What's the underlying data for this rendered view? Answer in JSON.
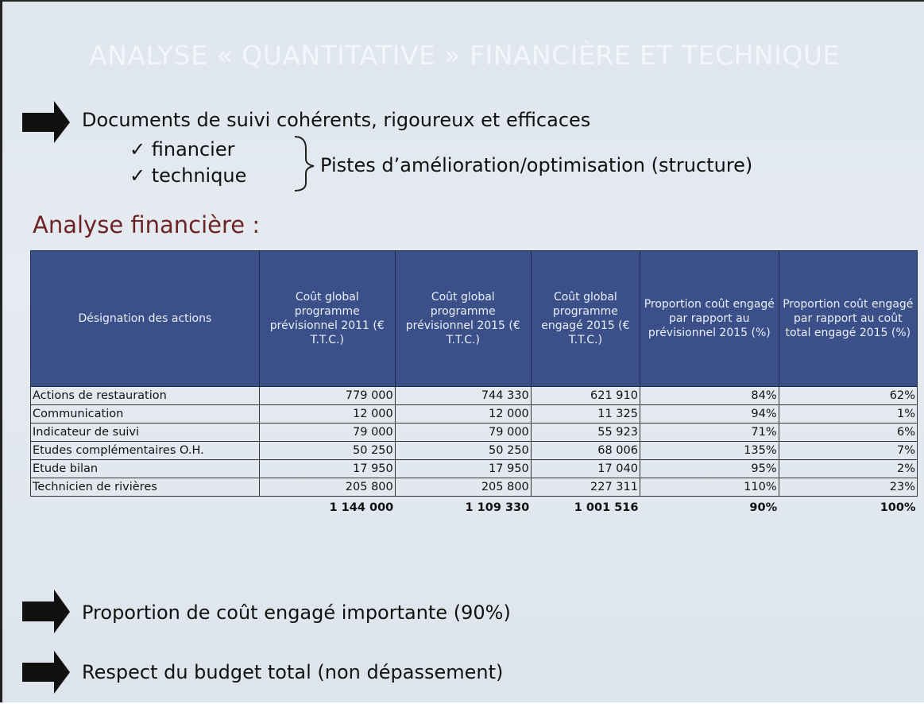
{
  "header": {
    "title": "ANALYSE « QUANTITATIVE » FINANCIÈRE ET TECHNIQUE"
  },
  "intro": {
    "heading": "Documents de suivi cohérents, rigoureux et efficaces",
    "items": [
      "✓ financier",
      "✓ technique"
    ],
    "note": "Pistes d’amélioration/optimisation (structure)"
  },
  "section": {
    "title": "Analyse financière :"
  },
  "table": {
    "columns": [
      "Désignation des actions",
      "Coût global programme prévisionnel 2011 (€ T.T.C.)",
      "Coût global programme prévisionnel 2015 (€ T.T.C.)",
      "Coût global programme engagé 2015 (€ T.T.C.)",
      "Proportion coût engagé par rapport au prévisionnel 2015 (%)",
      "Proportion coût engagé par rapport au coût total engagé 2015 (%)"
    ],
    "rows": [
      [
        "Actions de restauration",
        "779 000",
        "744 330",
        "621 910",
        "84%",
        "62%"
      ],
      [
        "Communication",
        "12 000",
        "12 000",
        "11 325",
        "94%",
        "1%"
      ],
      [
        "Indicateur de suivi",
        "79 000",
        "79 000",
        "55 923",
        "71%",
        "6%"
      ],
      [
        "Etudes complémentaires O.H.",
        "50 250",
        "50 250",
        "68 006",
        "135%",
        "7%"
      ],
      [
        "Etude bilan",
        "17 950",
        "17 950",
        "17 040",
        "95%",
        "2%"
      ],
      [
        "Technicien de rivières",
        "205 800",
        "205 800",
        "227 311",
        "110%",
        "23%"
      ]
    ],
    "total": [
      "1 144 000",
      "1 109 330",
      "1 001 516",
      "90%",
      "100%"
    ]
  },
  "conclusions": [
    "Proportion de coût engagé importante (90%)",
    "Respect du budget total (non dépassement)"
  ]
}
